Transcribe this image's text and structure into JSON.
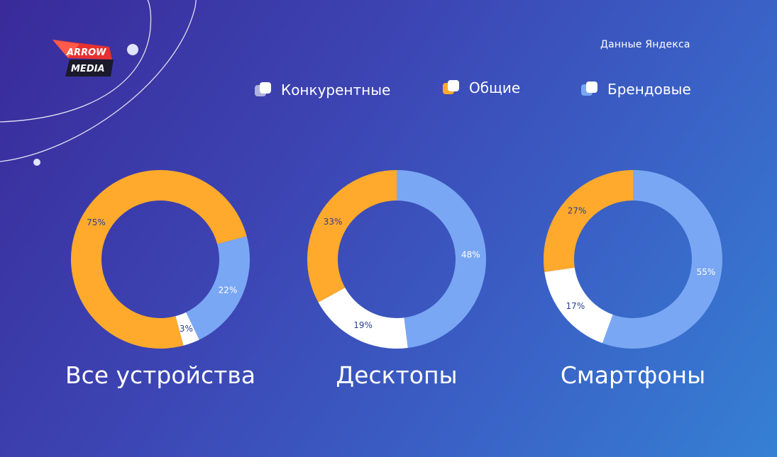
{
  "logo": {
    "line1": "ARROW",
    "line2": "MEDIA"
  },
  "source_label": "Данные Яндекса",
  "legend": [
    {
      "key": "competitive",
      "label": "Конкурентные",
      "color": "#ffffff"
    },
    {
      "key": "general",
      "label": "Общие",
      "color": "#ffaa2c"
    },
    {
      "key": "brand",
      "label": "Брендовые",
      "color": "#7aa7f4"
    }
  ],
  "colors": {
    "competitive": "#ffffff",
    "general": "#ffaa2c",
    "brand": "#7aa7f4",
    "label_dark": "#2c3f8e",
    "label_light": "#ffffff"
  },
  "chart_data": [
    {
      "type": "pie",
      "title": "Все устройства",
      "slices": [
        {
          "series": "general",
          "value": 75,
          "label": "75%"
        },
        {
          "series": "brand",
          "value": 22,
          "label": "22%"
        },
        {
          "series": "competitive",
          "value": 3,
          "label": "3%"
        }
      ]
    },
    {
      "type": "pie",
      "title": "Десктопы",
      "slices": [
        {
          "series": "brand",
          "value": 48,
          "label": "48%"
        },
        {
          "series": "competitive",
          "value": 19,
          "label": "19%"
        },
        {
          "series": "general",
          "value": 33,
          "label": "33%"
        }
      ]
    },
    {
      "type": "pie",
      "title": "Смартфоны",
      "slices": [
        {
          "series": "brand",
          "value": 55,
          "label": "55%"
        },
        {
          "series": "competitive",
          "value": 17,
          "label": "17%"
        },
        {
          "series": "general",
          "value": 27,
          "label": "27%"
        }
      ]
    }
  ]
}
